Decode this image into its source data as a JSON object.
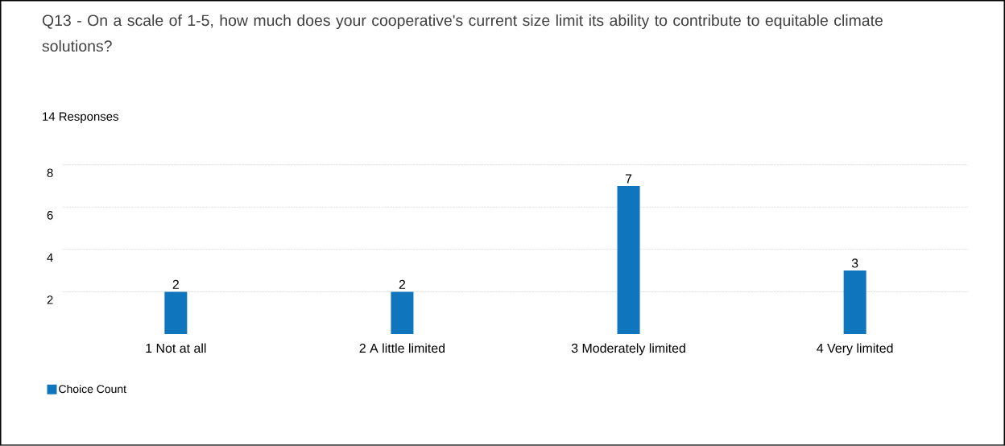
{
  "chart_data": {
    "type": "bar",
    "title": "Q13 - On a scale of 1-5, how much does your cooperative's current size limit its ability to contribute to equitable climate solutions?",
    "subtitle": "14 Responses",
    "categories": [
      "1 Not at all",
      "2 A little limited",
      "3 Moderately limited",
      "4 Very limited"
    ],
    "series": [
      {
        "name": "Choice Count",
        "color": "#0f75bc",
        "values": [
          2,
          2,
          7,
          3
        ]
      }
    ],
    "ylim": [
      0,
      8
    ],
    "yticks": [
      2,
      4,
      6,
      8
    ],
    "grid": "y",
    "data_labels": true,
    "legend": "bottom left"
  }
}
